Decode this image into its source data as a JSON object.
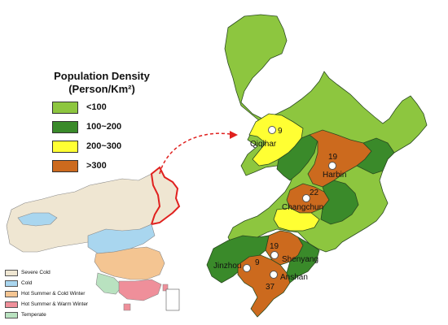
{
  "legend": {
    "title_line1": "Population Density",
    "title_line2": "(Person/Km²)",
    "items": [
      {
        "label": "<100",
        "color": "#8dc63f"
      },
      {
        "label": "100~200",
        "color": "#3a8a2a"
      },
      {
        "label": "200~300",
        "color": "#ffff33"
      },
      {
        "label": ">300",
        "color": "#cc6a1e"
      }
    ]
  },
  "climate_legend": {
    "items": [
      {
        "label": "Severe Cold",
        "color": "#efe6d2"
      },
      {
        "label": "Cold",
        "color": "#a9d6ef"
      },
      {
        "label": "Hot Summer & Cold Winter",
        "color": "#f4c592"
      },
      {
        "label": "Hot Summer & Warm Winter",
        "color": "#ef8f9a"
      },
      {
        "label": "Temperate",
        "color": "#b9e2c0"
      }
    ]
  },
  "cities": [
    {
      "name": "Qiqihar",
      "value": "9"
    },
    {
      "name": "Harbin",
      "value": "19"
    },
    {
      "name": "Changchun",
      "value": "22"
    },
    {
      "name": "Shenyang",
      "value": "19"
    },
    {
      "name": "Jinzhou",
      "value": "9"
    },
    {
      "name": "Anshan",
      "value": "37"
    }
  ]
}
